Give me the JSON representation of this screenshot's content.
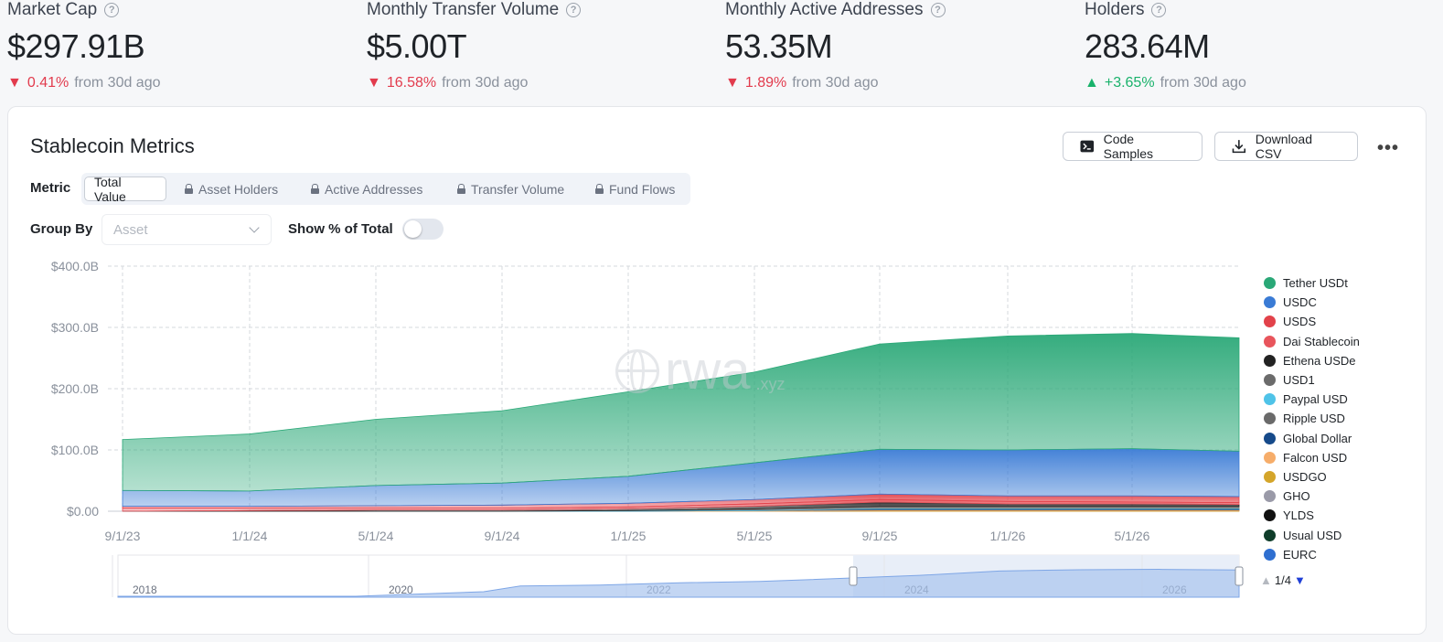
{
  "kpis": [
    {
      "title": "Market Cap",
      "value": "$297.91B",
      "delta": "0.41%",
      "direction": "down",
      "suffix": "from 30d ago"
    },
    {
      "title": "Monthly Transfer Volume",
      "value": "$5.00T",
      "delta": "16.58%",
      "direction": "down",
      "suffix": "from 30d ago"
    },
    {
      "title": "Monthly Active Addresses",
      "value": "53.35M",
      "delta": "1.89%",
      "direction": "down",
      "suffix": "from 30d ago"
    },
    {
      "title": "Holders",
      "value": "283.64M",
      "delta": "+3.65%",
      "direction": "up",
      "suffix": "from 30d ago"
    }
  ],
  "card": {
    "title": "Stablecoin Metrics",
    "code_samples_label": "Code Samples",
    "download_csv_label": "Download CSV",
    "more_label": "•••"
  },
  "metric": {
    "label": "Metric",
    "options": [
      "Total Value",
      "Asset Holders",
      "Active Addresses",
      "Transfer Volume",
      "Fund Flows"
    ],
    "selected": "Total Value"
  },
  "group_by": {
    "label": "Group By",
    "placeholder": "Asset"
  },
  "show_pct": {
    "label": "Show % of Total",
    "enabled": false
  },
  "watermark": {
    "text": "rwa",
    "suffix": ".xyz"
  },
  "pager": {
    "text": "1/4"
  },
  "colors": {
    "down": "#e23b4d",
    "up": "#19b26b",
    "tether": "#2aa877",
    "usdc": "#3a7bd5"
  },
  "chart_data": {
    "type": "area",
    "stacked": true,
    "x": [
      "9/1/23",
      "1/1/24",
      "5/1/24",
      "9/1/24",
      "1/1/25",
      "5/1/25",
      "9/1/25",
      "1/1/26",
      "5/1/26",
      "7/1/26"
    ],
    "ytick_labels": [
      "$0.00",
      "$100.0B",
      "$200.0B",
      "$300.0B",
      "$400.0B"
    ],
    "ylim": [
      0,
      400
    ],
    "yunit": "B",
    "xtick_labels": [
      "9/1/23",
      "1/1/24",
      "5/1/24",
      "9/1/24",
      "1/1/25",
      "5/1/25",
      "9/1/25",
      "1/1/26",
      "5/1/26"
    ],
    "grid": true,
    "legend_position": "right",
    "series": [
      {
        "name": "Tether USDt",
        "color": "#2aa877",
        "values": [
          83,
          93,
          108,
          118,
          138,
          148,
          172,
          186,
          188,
          185
        ]
      },
      {
        "name": "USDC",
        "color": "#3a7bd5",
        "values": [
          26,
          25,
          33,
          36,
          44,
          60,
          73,
          75,
          77,
          74
        ]
      },
      {
        "name": "USDS",
        "color": "#e2424a",
        "values": [
          3,
          3,
          4,
          5,
          6,
          7,
          9,
          9,
          10,
          10
        ]
      },
      {
        "name": "Dai Stablecoin",
        "color": "#e8555c",
        "values": [
          5,
          4,
          3,
          3,
          3,
          4,
          4,
          4,
          3,
          3
        ]
      },
      {
        "name": "Ethena USDe",
        "color": "#222222",
        "values": [
          0,
          1,
          2,
          2,
          3,
          4,
          7,
          4,
          4,
          3
        ]
      },
      {
        "name": "USD1",
        "color": "#6b6b6b",
        "values": [
          0,
          0,
          0,
          0,
          0,
          2,
          3,
          3,
          3,
          3
        ]
      },
      {
        "name": "Paypal USD",
        "color": "#4fc3e8",
        "values": [
          0,
          0,
          0,
          0,
          1,
          1,
          1,
          1,
          1,
          1
        ]
      },
      {
        "name": "Ripple USD",
        "color": "#6a6a6a",
        "values": [
          0,
          0,
          0,
          0,
          0,
          0,
          1,
          1,
          1,
          1
        ]
      },
      {
        "name": "Global Dollar",
        "color": "#164a8a",
        "values": [
          0,
          0,
          0,
          0,
          0,
          0,
          1,
          1,
          1,
          1
        ]
      },
      {
        "name": "Falcon USD",
        "color": "#f6ad6a",
        "values": [
          0,
          0,
          0,
          0,
          0,
          1,
          1,
          1,
          1,
          1
        ]
      },
      {
        "name": "USDGO",
        "color": "#d4a52a",
        "values": [
          0,
          0,
          0,
          0,
          0,
          0,
          1,
          1,
          1,
          1
        ]
      },
      {
        "name": "GHO",
        "color": "#9a9aa8",
        "values": [
          0,
          0,
          0,
          0,
          0,
          0,
          0,
          0,
          0,
          0
        ]
      },
      {
        "name": "YLDS",
        "color": "#111111",
        "values": [
          0,
          0,
          0,
          0,
          0,
          0,
          0,
          0,
          0,
          0
        ]
      },
      {
        "name": "Usual USD",
        "color": "#0f3d2a",
        "values": [
          0,
          0,
          0,
          0,
          0,
          0,
          0,
          0,
          0,
          0
        ]
      },
      {
        "name": "EURC",
        "color": "#2f6fd0",
        "values": [
          0,
          0,
          0,
          0,
          0,
          0,
          0,
          0,
          0,
          0
        ]
      }
    ],
    "navigator": {
      "xtick_labels": [
        "2018",
        "2020",
        "2022",
        "2024",
        "2026"
      ]
    }
  }
}
